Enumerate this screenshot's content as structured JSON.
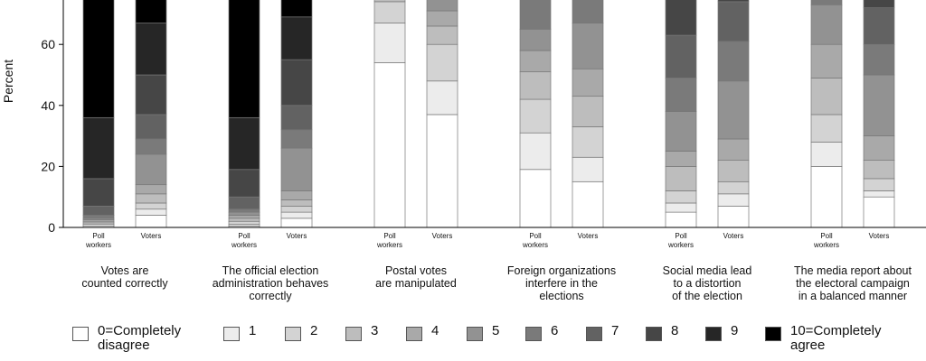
{
  "chart_data": {
    "type": "bar",
    "stacked": true,
    "ylabel": "Percent",
    "ylim": [
      0,
      75
    ],
    "yticks": [
      0,
      20,
      40,
      60
    ],
    "bar_labels": [
      "Poll\nworkers",
      "Voters"
    ],
    "legend": [
      {
        "label": "0=Completely\ndisagree",
        "color": "#ffffff"
      },
      {
        "label": "1",
        "color": "#ececec"
      },
      {
        "label": "2",
        "color": "#d3d3d3"
      },
      {
        "label": "3",
        "color": "#bdbdbd"
      },
      {
        "label": "4",
        "color": "#a9a9a9"
      },
      {
        "label": "5",
        "color": "#929292"
      },
      {
        "label": "6",
        "color": "#7a7a7a"
      },
      {
        "label": "7",
        "color": "#626262"
      },
      {
        "label": "8",
        "color": "#464646"
      },
      {
        "label": "9",
        "color": "#262626"
      },
      {
        "label": "10=Completely\nagree",
        "color": "#000000"
      }
    ],
    "groups": [
      {
        "label": "Votes are\ncounted correctly",
        "bars": [
          {
            "name": "Poll workers",
            "values": [
              0.5,
              0.5,
              0.5,
              0.5,
              0.5,
              0.5,
              1,
              3,
              9,
              20,
              64
            ]
          },
          {
            "name": "Voters",
            "values": [
              4,
              2,
              2,
              3,
              3,
              10,
              5,
              8,
              13,
              17,
              33
            ]
          }
        ]
      },
      {
        "label": "The official election\nadministration behaves\ncorrectly",
        "bars": [
          {
            "name": "Poll workers",
            "values": [
              0.5,
              0.5,
              1,
              1,
              1,
              1,
              1,
              4,
              9,
              17,
              64
            ]
          },
          {
            "name": "Voters",
            "values": [
              3,
              2,
              2,
              2,
              3,
              14,
              6,
              8,
              15,
              14,
              31
            ]
          }
        ]
      },
      {
        "label": "Postal votes\nare manipulated",
        "bars": [
          {
            "name": "Poll workers",
            "values": [
              54,
              13,
              7,
              4,
              3,
              3,
              3,
              3,
              3,
              3,
              4
            ]
          },
          {
            "name": "Voters",
            "values": [
              37,
              11,
              12,
              6,
              5,
              5,
              4,
              5,
              5,
              4,
              6
            ]
          }
        ]
      },
      {
        "label": "Foreign organizations\ninterfere in the\nelections",
        "bars": [
          {
            "name": "Poll workers",
            "values": [
              19,
              12,
              11,
              9,
              7,
              7,
              11,
              6,
              6,
              5,
              7
            ]
          },
          {
            "name": "Voters",
            "values": [
              15,
              8,
              10,
              10,
              9,
              15,
              15,
              7,
              5,
              3,
              3
            ]
          }
        ]
      },
      {
        "label": "Social media lead\nto a distortion\nof the election",
        "bars": [
          {
            "name": "Poll workers",
            "values": [
              5,
              3,
              4,
              8,
              5,
              13,
              11,
              14,
              19,
              9,
              9
            ]
          },
          {
            "name": "Voters",
            "values": [
              7,
              4,
              4,
              7,
              7,
              19,
              13,
              13,
              12,
              7,
              7
            ]
          }
        ]
      },
      {
        "label": "The media report about\nthe electoral campaign\nin a balanced manner",
        "bars": [
          {
            "name": "Poll workers",
            "values": [
              20,
              8,
              9,
              12,
              11,
              13,
              5,
              4,
              4,
              5,
              9
            ]
          },
          {
            "name": "Voters",
            "values": [
              10,
              2,
              4,
              6,
              8,
              20,
              10,
              12,
              10,
              9,
              9
            ]
          }
        ]
      }
    ]
  }
}
